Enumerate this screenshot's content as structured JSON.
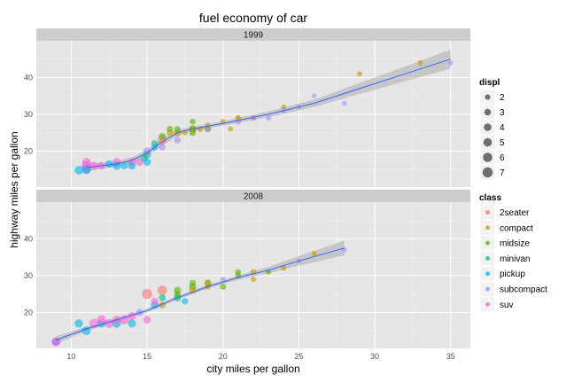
{
  "chart_data": {
    "type": "scatter",
    "title": "fuel economy of car",
    "xlabel": "city miles per gallon",
    "ylabel": "highway miles per gallon",
    "xlim": [
      7.7,
      36.3
    ],
    "ylim": [
      10.2,
      50
    ],
    "xticks": [
      10,
      15,
      20,
      25,
      30,
      35
    ],
    "yticks": [
      20,
      30,
      40
    ],
    "grid": true,
    "facet_variable": "year",
    "legend_placement": "right",
    "size_legend": {
      "title": "displ",
      "entries": [
        {
          "label": "2",
          "value": 2
        },
        {
          "label": "3",
          "value": 3
        },
        {
          "label": "4",
          "value": 4
        },
        {
          "label": "5",
          "value": 5
        },
        {
          "label": "6",
          "value": 6
        },
        {
          "label": "7",
          "value": 7
        }
      ]
    },
    "color_legend": {
      "title": "class",
      "entries": [
        {
          "label": "2seater",
          "color": "#F8766D"
        },
        {
          "label": "compact",
          "color": "#C49A00"
        },
        {
          "label": "midsize",
          "color": "#53B400"
        },
        {
          "label": "minivan",
          "color": "#00C094"
        },
        {
          "label": "pickup",
          "color": "#00B6EB"
        },
        {
          "label": "subcompact",
          "color": "#A58AFF"
        },
        {
          "label": "suv",
          "color": "#FB61D7"
        }
      ]
    },
    "panels": [
      {
        "label": "1999",
        "points": [
          {
            "x": 11,
            "y": 15,
            "displ": 5.4,
            "class": "suv"
          },
          {
            "x": 11,
            "y": 16,
            "displ": 6.5,
            "class": "suv"
          },
          {
            "x": 11,
            "y": 15,
            "displ": 5.9,
            "class": "pickup"
          },
          {
            "x": 10.5,
            "y": 14.8,
            "displ": 5.2,
            "class": "pickup"
          },
          {
            "x": 11,
            "y": 17,
            "displ": 5.0,
            "class": "suv"
          },
          {
            "x": 11.5,
            "y": 16,
            "displ": 4.6,
            "class": "suv"
          },
          {
            "x": 12,
            "y": 16,
            "displ": 4.0,
            "class": "suv"
          },
          {
            "x": 12.5,
            "y": 16.5,
            "displ": 3.8,
            "class": "pickup"
          },
          {
            "x": 13,
            "y": 17,
            "displ": 5.0,
            "class": "suv"
          },
          {
            "x": 13,
            "y": 16,
            "displ": 4.6,
            "class": "pickup"
          },
          {
            "x": 13.5,
            "y": 16,
            "displ": 3.8,
            "class": "pickup"
          },
          {
            "x": 14,
            "y": 17,
            "displ": 4.6,
            "class": "suv"
          },
          {
            "x": 14,
            "y": 16,
            "displ": 4.0,
            "class": "pickup"
          },
          {
            "x": 14.5,
            "y": 17,
            "displ": 4.2,
            "class": "suv"
          },
          {
            "x": 14.8,
            "y": 18,
            "displ": 3.0,
            "class": "minivan"
          },
          {
            "x": 15,
            "y": 19,
            "displ": 3.8,
            "class": "minivan"
          },
          {
            "x": 15,
            "y": 17,
            "displ": 4.0,
            "class": "pickup"
          },
          {
            "x": 15,
            "y": 20,
            "displ": 4.0,
            "class": "subcompact"
          },
          {
            "x": 15.5,
            "y": 22,
            "displ": 3.3,
            "class": "minivan"
          },
          {
            "x": 15.5,
            "y": 21,
            "displ": 2.7,
            "class": "pickup"
          },
          {
            "x": 16,
            "y": 23,
            "displ": 5.7,
            "class": "2seater"
          },
          {
            "x": 16,
            "y": 24,
            "displ": 3.3,
            "class": "midsize"
          },
          {
            "x": 16,
            "y": 21,
            "displ": 3.0,
            "class": "subcompact"
          },
          {
            "x": 16.5,
            "y": 25,
            "displ": 3.0,
            "class": "compact"
          },
          {
            "x": 16.5,
            "y": 26,
            "displ": 2.8,
            "class": "midsize"
          },
          {
            "x": 17,
            "y": 25,
            "displ": 3.8,
            "class": "compact"
          },
          {
            "x": 17,
            "y": 26,
            "displ": 2.5,
            "class": "midsize"
          },
          {
            "x": 17,
            "y": 23,
            "displ": 3.0,
            "class": "subcompact"
          },
          {
            "x": 17.5,
            "y": 25,
            "displ": 2.0,
            "class": "compact"
          },
          {
            "x": 18,
            "y": 26,
            "displ": 3.8,
            "class": "midsize"
          },
          {
            "x": 18,
            "y": 25,
            "displ": 3.0,
            "class": "midsize"
          },
          {
            "x": 18,
            "y": 26,
            "displ": 2.8,
            "class": "compact"
          },
          {
            "x": 18,
            "y": 28,
            "displ": 2.4,
            "class": "midsize"
          },
          {
            "x": 18.5,
            "y": 26,
            "displ": 2.5,
            "class": "compact"
          },
          {
            "x": 19,
            "y": 26,
            "displ": 3.0,
            "class": "midsize"
          },
          {
            "x": 19,
            "y": 27,
            "displ": 2.2,
            "class": "compact"
          },
          {
            "x": 19,
            "y": 26,
            "displ": 2.0,
            "class": "subcompact"
          },
          {
            "x": 20,
            "y": 28,
            "displ": 2.0,
            "class": "compact"
          },
          {
            "x": 20.5,
            "y": 26,
            "displ": 2.0,
            "class": "compact"
          },
          {
            "x": 21,
            "y": 29,
            "displ": 2.0,
            "class": "compact"
          },
          {
            "x": 21,
            "y": 29,
            "displ": 1.8,
            "class": "compact"
          },
          {
            "x": 21,
            "y": 28,
            "displ": 2.2,
            "class": "subcompact"
          },
          {
            "x": 22,
            "y": 29,
            "displ": 1.8,
            "class": "compact"
          },
          {
            "x": 22,
            "y": 29,
            "displ": 2.0,
            "class": "subcompact"
          },
          {
            "x": 23,
            "y": 29,
            "displ": 1.8,
            "class": "subcompact"
          },
          {
            "x": 24,
            "y": 32,
            "displ": 1.8,
            "class": "compact"
          },
          {
            "x": 24,
            "y": 31,
            "displ": 1.9,
            "class": "subcompact"
          },
          {
            "x": 25,
            "y": 32,
            "displ": 1.6,
            "class": "subcompact"
          },
          {
            "x": 26,
            "y": 35,
            "displ": 1.6,
            "class": "subcompact"
          },
          {
            "x": 28,
            "y": 33,
            "displ": 1.6,
            "class": "subcompact"
          },
          {
            "x": 29,
            "y": 41,
            "displ": 1.9,
            "class": "compact"
          },
          {
            "x": 33,
            "y": 44,
            "displ": 1.9,
            "class": "compact"
          },
          {
            "x": 35,
            "y": 44,
            "displ": 1.6,
            "class": "subcompact"
          }
        ],
        "smooth": [
          {
            "x": 11,
            "y": 15.5
          },
          {
            "x": 12,
            "y": 16.0
          },
          {
            "x": 13,
            "y": 16.5
          },
          {
            "x": 14,
            "y": 17.5
          },
          {
            "x": 15,
            "y": 19.5
          },
          {
            "x": 16,
            "y": 22.5
          },
          {
            "x": 17,
            "y": 25.0
          },
          {
            "x": 18,
            "y": 26.0
          },
          {
            "x": 20,
            "y": 27.5
          },
          {
            "x": 23,
            "y": 30.0
          },
          {
            "x": 26,
            "y": 33.0
          },
          {
            "x": 29,
            "y": 37.0
          },
          {
            "x": 32,
            "y": 41.0
          },
          {
            "x": 35,
            "y": 45.0
          }
        ],
        "band_halfwidth": [
          1.2,
          0.8,
          0.7,
          0.8,
          0.9,
          1.0,
          0.8,
          0.6,
          0.6,
          0.8,
          1.0,
          1.5,
          2.0,
          2.6
        ]
      },
      {
        "label": "2008",
        "points": [
          {
            "x": 9,
            "y": 12,
            "displ": 4.7,
            "class": "pickup"
          },
          {
            "x": 9,
            "y": 12,
            "displ": 5.3,
            "class": "subcompact"
          },
          {
            "x": 9,
            "y": 12,
            "displ": 4.7,
            "class": "suv"
          },
          {
            "x": 10.5,
            "y": 17,
            "displ": 4.7,
            "class": "pickup"
          },
          {
            "x": 11,
            "y": 15,
            "displ": 5.3,
            "class": "pickup"
          },
          {
            "x": 11.5,
            "y": 17,
            "displ": 5.7,
            "class": "suv"
          },
          {
            "x": 12,
            "y": 17,
            "displ": 4.6,
            "class": "pickup"
          },
          {
            "x": 12,
            "y": 18,
            "displ": 6.0,
            "class": "suv"
          },
          {
            "x": 12.5,
            "y": 17,
            "displ": 5.4,
            "class": "suv"
          },
          {
            "x": 13,
            "y": 17,
            "displ": 5.3,
            "class": "pickup"
          },
          {
            "x": 13,
            "y": 18,
            "displ": 4.7,
            "class": "suv"
          },
          {
            "x": 13.5,
            "y": 18,
            "displ": 5.7,
            "class": "suv"
          },
          {
            "x": 14,
            "y": 19,
            "displ": 4.6,
            "class": "suv"
          },
          {
            "x": 14,
            "y": 17,
            "displ": 4.7,
            "class": "pickup"
          },
          {
            "x": 14.5,
            "y": 20,
            "displ": 3.5,
            "class": "subcompact"
          },
          {
            "x": 15,
            "y": 18,
            "displ": 3.8,
            "class": "suv"
          },
          {
            "x": 15,
            "y": 25,
            "displ": 7.0,
            "class": "2seater"
          },
          {
            "x": 15.5,
            "y": 22,
            "displ": 4.0,
            "class": "pickup"
          },
          {
            "x": 15.5,
            "y": 23,
            "displ": 3.7,
            "class": "suv"
          },
          {
            "x": 16,
            "y": 26,
            "displ": 6.2,
            "class": "2seater"
          },
          {
            "x": 16,
            "y": 24,
            "displ": 3.3,
            "class": "minivan"
          },
          {
            "x": 16,
            "y": 22,
            "displ": 3.0,
            "class": "compact"
          },
          {
            "x": 17,
            "y": 24,
            "displ": 3.8,
            "class": "minivan"
          },
          {
            "x": 17,
            "y": 26,
            "displ": 3.5,
            "class": "midsize"
          },
          {
            "x": 17,
            "y": 25,
            "displ": 3.1,
            "class": "midsize"
          },
          {
            "x": 17.5,
            "y": 23,
            "displ": 2.7,
            "class": "pickup"
          },
          {
            "x": 18,
            "y": 27,
            "displ": 3.6,
            "class": "midsize"
          },
          {
            "x": 18,
            "y": 26,
            "displ": 3.5,
            "class": "compact"
          },
          {
            "x": 18,
            "y": 28,
            "displ": 2.8,
            "class": "midsize"
          },
          {
            "x": 19,
            "y": 28,
            "displ": 3.3,
            "class": "midsize"
          },
          {
            "x": 19,
            "y": 27,
            "displ": 2.5,
            "class": "compact"
          },
          {
            "x": 19,
            "y": 28,
            "displ": 2.2,
            "class": "compact"
          },
          {
            "x": 20,
            "y": 27,
            "displ": 2.7,
            "class": "midsize"
          },
          {
            "x": 20,
            "y": 29,
            "displ": 2.0,
            "class": "subcompact"
          },
          {
            "x": 21,
            "y": 30,
            "displ": 2.5,
            "class": "midsize"
          },
          {
            "x": 21,
            "y": 31,
            "displ": 2.4,
            "class": "midsize"
          },
          {
            "x": 22,
            "y": 31,
            "displ": 2.4,
            "class": "compact"
          },
          {
            "x": 22,
            "y": 29,
            "displ": 2.0,
            "class": "compact"
          },
          {
            "x": 23,
            "y": 31,
            "displ": 1.8,
            "class": "midsize"
          },
          {
            "x": 24,
            "y": 32,
            "displ": 1.8,
            "class": "compact"
          },
          {
            "x": 25,
            "y": 34,
            "displ": 1.8,
            "class": "subcompact"
          },
          {
            "x": 26,
            "y": 36,
            "displ": 1.8,
            "class": "compact"
          },
          {
            "x": 28,
            "y": 37,
            "displ": 1.8,
            "class": "subcompact"
          }
        ],
        "smooth": [
          {
            "x": 9,
            "y": 12.5
          },
          {
            "x": 11,
            "y": 15.5
          },
          {
            "x": 13,
            "y": 18.0
          },
          {
            "x": 15,
            "y": 20.5
          },
          {
            "x": 17,
            "y": 24.0
          },
          {
            "x": 19,
            "y": 27.0
          },
          {
            "x": 21,
            "y": 29.5
          },
          {
            "x": 23,
            "y": 31.5
          },
          {
            "x": 25,
            "y": 34.0
          },
          {
            "x": 28,
            "y": 37.5
          }
        ],
        "band_halfwidth": [
          1.0,
          0.6,
          0.5,
          0.5,
          0.5,
          0.5,
          0.6,
          0.9,
          1.3,
          2.0
        ]
      }
    ]
  }
}
